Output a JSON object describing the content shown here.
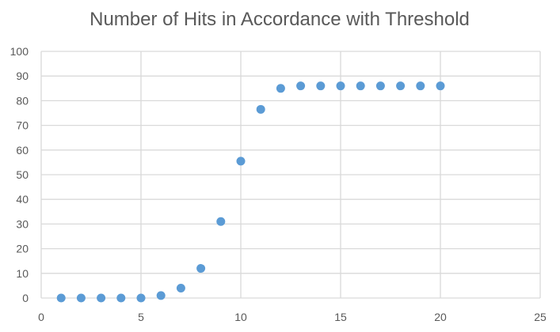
{
  "chart_data": {
    "type": "scatter",
    "title": "Number of Hits in Accordance with Threshold",
    "xlabel": "",
    "ylabel": "",
    "xlim": [
      0,
      25
    ],
    "ylim": [
      0,
      100
    ],
    "x_ticks": [
      0,
      5,
      10,
      15,
      20,
      25
    ],
    "y_ticks": [
      0,
      10,
      20,
      30,
      40,
      50,
      60,
      70,
      80,
      90,
      100
    ],
    "grid": true,
    "legend": "none",
    "marker_color": "#5B9BD5",
    "grid_color": "#D9D9D9",
    "text_color": "#595959",
    "series": [
      {
        "x": [
          1,
          2,
          3,
          4,
          5,
          6,
          7,
          8,
          9,
          10,
          11,
          12,
          13,
          14,
          15,
          16,
          17,
          18,
          19,
          20
        ],
        "y": [
          0,
          0,
          0,
          0,
          0,
          1,
          4,
          12,
          31,
          55.5,
          76.5,
          85,
          86,
          86,
          86,
          86,
          86,
          86,
          86,
          86
        ]
      }
    ]
  }
}
